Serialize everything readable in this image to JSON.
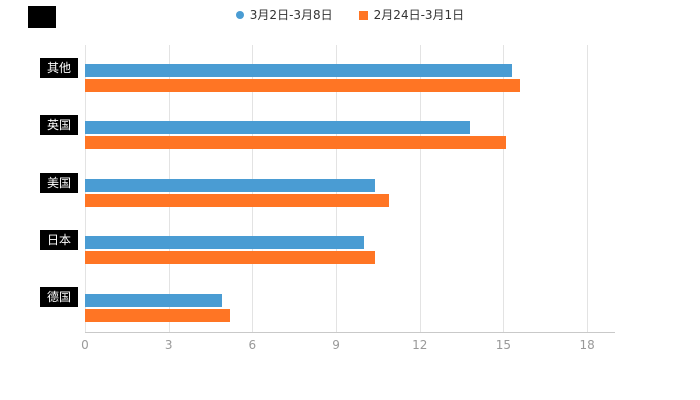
{
  "legend": {
    "items": [
      {
        "label": "3月2日-3月8日",
        "color": "#4a9cd3",
        "marker": "circle"
      },
      {
        "label": "2月24日-3月1日",
        "color": "#ff7524",
        "marker": "square"
      }
    ]
  },
  "chart_data": {
    "type": "bar",
    "orientation": "horizontal",
    "title": "",
    "categories": [
      "其他",
      "英国",
      "美国",
      "日本",
      "德国"
    ],
    "series": [
      {
        "name": "3月2日-3月8日",
        "color": "#4a9cd3",
        "values": [
          15.3,
          13.8,
          10.4,
          10.0,
          4.9
        ]
      },
      {
        "name": "2月24日-3月1日",
        "color": "#ff7524",
        "values": [
          15.6,
          15.1,
          10.9,
          10.4,
          5.2
        ]
      }
    ],
    "xlabel": "",
    "ylabel": "",
    "xticks": [
      0,
      3,
      6,
      9,
      12,
      15,
      18
    ],
    "xlim": [
      0,
      19
    ],
    "grid": true,
    "legend_position": "top"
  }
}
